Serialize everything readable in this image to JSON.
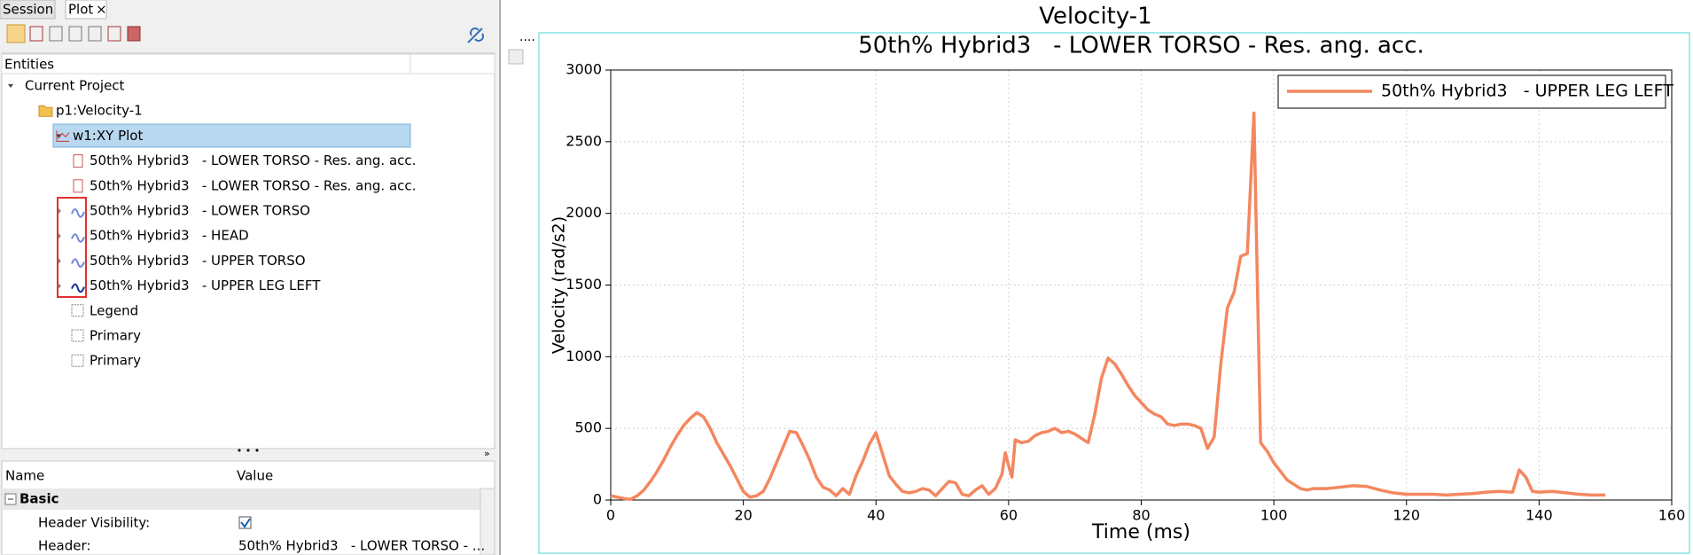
{
  "tabs": [
    "Session",
    "Plot"
  ],
  "entities_header": "Entities",
  "tree": {
    "label": "Current Project",
    "children": [
      {
        "label": "p1:Velocity-1",
        "children": [
          {
            "label": "w1:XY Plot",
            "children": [
              {
                "label": "50th% Hybrid3   - LOWER TORSO - Res. ang. acc."
              },
              {
                "label": "50th% Hybrid3   - LOWER TORSO - Res. ang. acc."
              },
              {
                "label": "50th% Hybrid3   - LOWER TORSO"
              },
              {
                "label": "50th% Hybrid3   - HEAD"
              },
              {
                "label": "50th% Hybrid3   - UPPER TORSO"
              },
              {
                "label": "50th% Hybrid3   - UPPER LEG LEFT"
              },
              {
                "label": "Legend"
              },
              {
                "label": "Primary"
              },
              {
                "label": "Primary"
              }
            ]
          }
        ]
      }
    ]
  },
  "properties": {
    "columns": [
      "Name",
      "Value"
    ],
    "group": "Basic",
    "rows": [
      {
        "name": "Header Visibility:",
        "checked": true
      },
      {
        "name": "Header:",
        "value": "50th% Hybrid3   - LOWER TORSO - ..."
      }
    ]
  },
  "window_title": "Velocity-1",
  "chart_data": {
    "type": "line",
    "title": "50th% Hybrid3   - LOWER TORSO - Res. ang. acc.",
    "xlabel": "Time (ms)",
    "ylabel": "Velocity (rad/s2)",
    "x": [
      0,
      1,
      2,
      3,
      4,
      5,
      6,
      7,
      8,
      9,
      10,
      11,
      12,
      13,
      14,
      15,
      16,
      17,
      18,
      19,
      20,
      21,
      22,
      23,
      24,
      25,
      26,
      27,
      28,
      29,
      30,
      31,
      32,
      33,
      34,
      35,
      36,
      37,
      38,
      39,
      40,
      41,
      42,
      43,
      44,
      45,
      46,
      47,
      48,
      49,
      50,
      51,
      52,
      53,
      54,
      55,
      56,
      57,
      58,
      59,
      59.5,
      60,
      60.5,
      61,
      62,
      63,
      64,
      65,
      66,
      67,
      68,
      69,
      70,
      71,
      72,
      73,
      74,
      75,
      76,
      77,
      78,
      79,
      80,
      81,
      82,
      83,
      84,
      85,
      86,
      87,
      88,
      89,
      90,
      91,
      92,
      93,
      94,
      95,
      96,
      97,
      98,
      99,
      100,
      101,
      102,
      103,
      104,
      105,
      106,
      108,
      110,
      112,
      114,
      116,
      118,
      120,
      122,
      124,
      126,
      128,
      130,
      132,
      134,
      136,
      137,
      138,
      139,
      140,
      142,
      144,
      146,
      148,
      150
    ],
    "series": [
      {
        "name": "50th% Hybrid3   - UPPER LEG LEFT",
        "color": "#f4875f",
        "values": [
          30,
          20,
          10,
          5,
          30,
          70,
          130,
          200,
          280,
          370,
          450,
          520,
          570,
          610,
          580,
          500,
          400,
          320,
          240,
          150,
          60,
          20,
          30,
          60,
          150,
          260,
          370,
          480,
          470,
          380,
          280,
          160,
          90,
          70,
          30,
          80,
          40,
          170,
          270,
          390,
          470,
          320,
          170,
          110,
          60,
          50,
          60,
          80,
          70,
          30,
          80,
          130,
          120,
          40,
          30,
          70,
          100,
          40,
          80,
          180,
          330,
          240,
          160,
          420,
          400,
          410,
          450,
          470,
          480,
          500,
          470,
          480,
          460,
          430,
          400,
          600,
          850,
          990,
          950,
          880,
          800,
          730,
          680,
          630,
          600,
          580,
          530,
          520,
          530,
          530,
          520,
          500,
          360,
          440,
          950,
          1340,
          1450,
          1700,
          1720,
          2700,
          400,
          340,
          260,
          200,
          140,
          110,
          80,
          70,
          80,
          80,
          90,
          100,
          95,
          70,
          50,
          40,
          40,
          40,
          35,
          40,
          45,
          55,
          60,
          55,
          210,
          160,
          60,
          55,
          60,
          50,
          40,
          35,
          35
        ]
      }
    ],
    "xlim": [
      0,
      160
    ],
    "ylim": [
      0,
      3000
    ],
    "xticks": [
      0,
      20,
      40,
      60,
      80,
      100,
      120,
      140,
      160
    ],
    "yticks": [
      0,
      500,
      1000,
      1500,
      2000,
      2500,
      3000
    ],
    "grid": true
  }
}
